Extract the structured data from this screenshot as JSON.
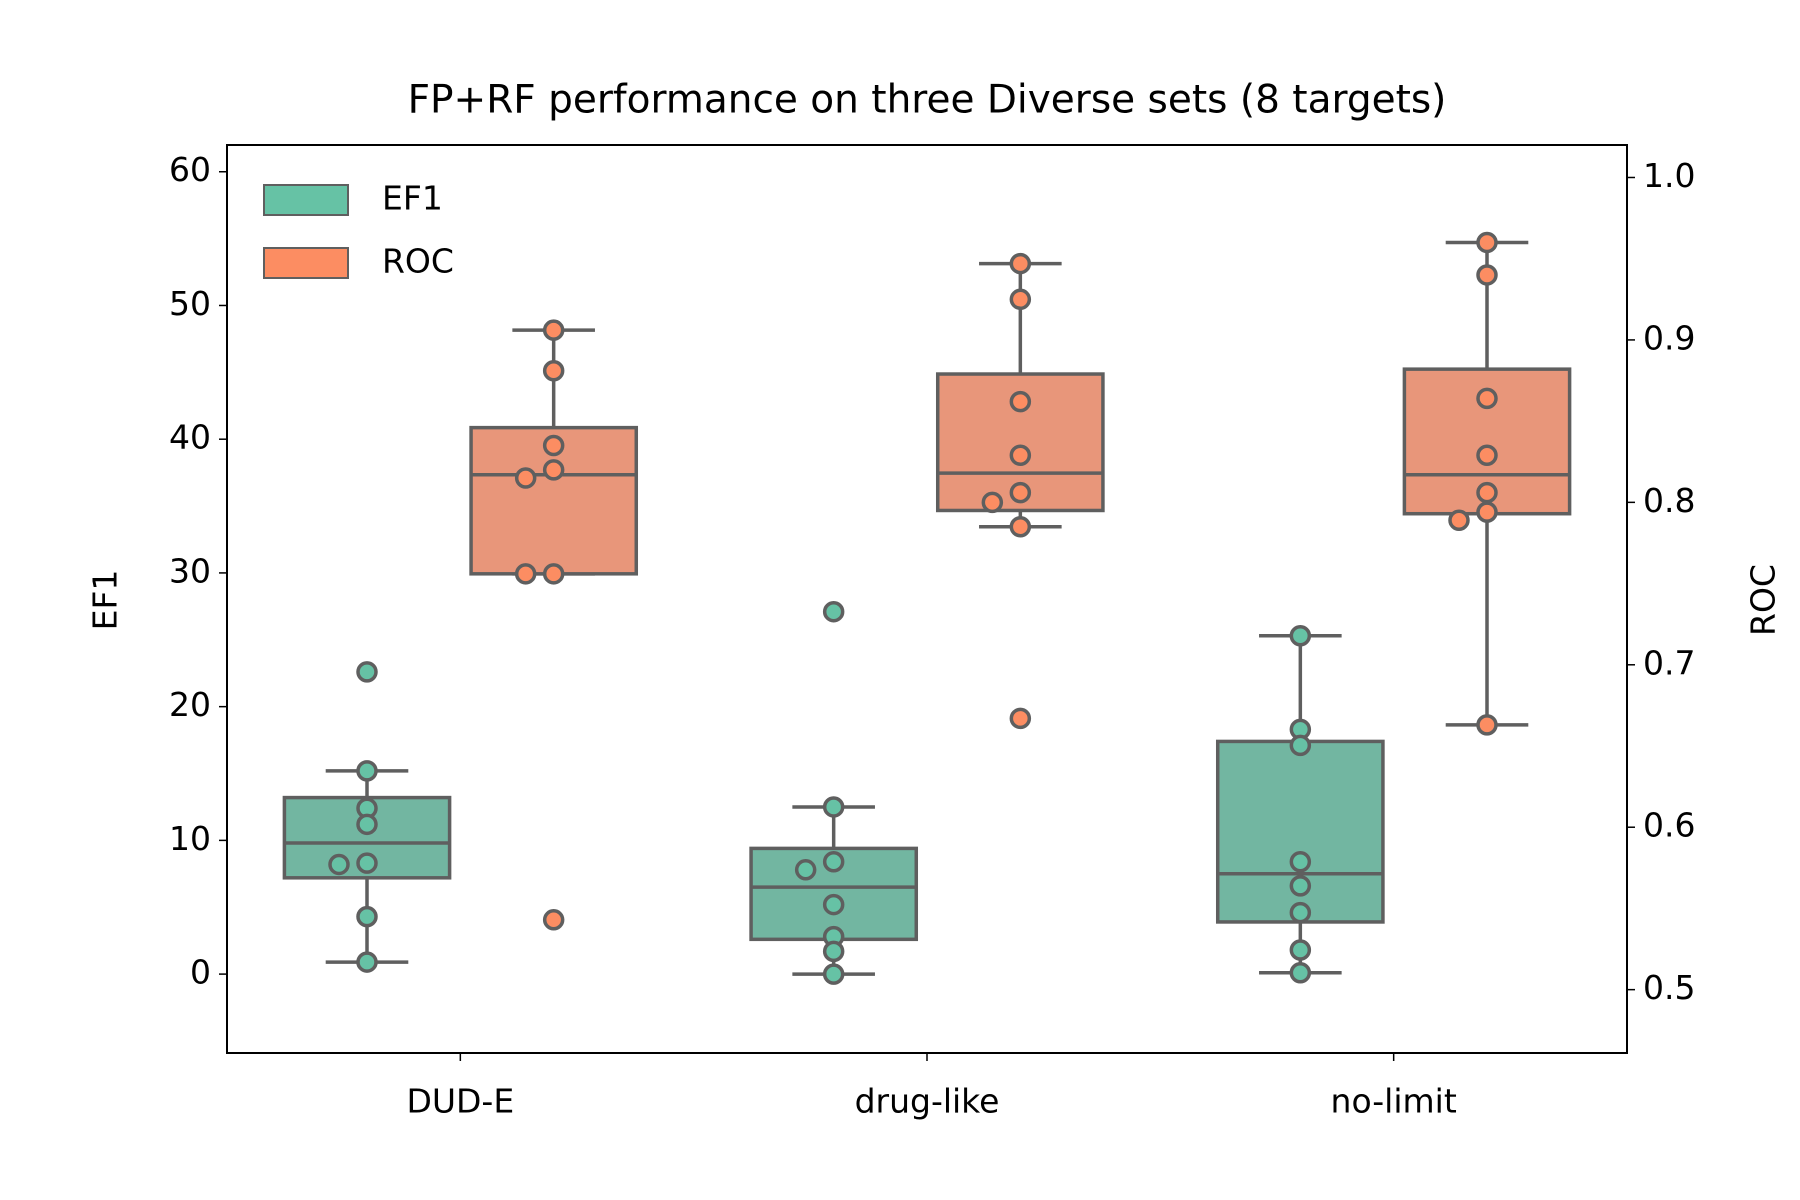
{
  "chart_data": {
    "type": "box",
    "title": "FP+RF performance on three Diverse sets (8 targets)",
    "ylabel": "EF1",
    "y2label": "ROC",
    "categories": [
      "DUD-E",
      "drug-like",
      "no-limit"
    ],
    "ylim": [
      -5.9,
      62
    ],
    "yticks": [
      0,
      10,
      20,
      30,
      40,
      50,
      60
    ],
    "y2lim": [
      0.461,
      1.02
    ],
    "y2ticks": [
      0.5,
      0.6,
      0.7,
      0.8,
      0.9,
      {
        "value": 1,
        "label": "1.0"
      }
    ],
    "legend": "upper left",
    "grid": false,
    "series": [
      {
        "name": "EF1",
        "color": "#66c2a5",
        "box_color": "#72b6a1",
        "boxes": [
          {
            "min": 0.9,
            "q1": 7.2,
            "median": 9.8,
            "q3": 13.2,
            "max": 15.2,
            "points": [
              22.6,
              15.2,
              12.4,
              11.2,
              8.3,
              8.2,
              4.3,
              0.9
            ]
          },
          {
            "min": 0,
            "q1": 2.6,
            "median": 6.5,
            "q3": 9.4,
            "max": 12.5,
            "points": [
              27.1,
              12.5,
              8.4,
              7.8,
              5.2,
              2.8,
              1.7,
              0
            ]
          },
          {
            "min": 0.1,
            "q1": 3.9,
            "median": 7.5,
            "q3": 17.4,
            "max": 25.3,
            "points": [
              25.3,
              18.3,
              17.1,
              8.4,
              6.6,
              4.6,
              1.8,
              0.1
            ]
          }
        ]
      },
      {
        "name": "ROC",
        "color": "#fc8d62",
        "box_color": "#e8967a",
        "axis": "y2",
        "boxes": [
          {
            "min": 0.756,
            "q1": 0.756,
            "median": 0.817,
            "q3": 0.846,
            "max": 0.906,
            "points": [
              0.906,
              0.881,
              0.835,
              0.82,
              0.815,
              0.756,
              0.756,
              0.543
            ]
          },
          {
            "min": 0.785,
            "q1": 0.795,
            "median": 0.818,
            "q3": 0.879,
            "max": 0.947,
            "points": [
              0.947,
              0.925,
              0.862,
              0.829,
              0.806,
              0.8,
              0.785,
              0.667
            ]
          },
          {
            "min": 0.663,
            "q1": 0.793,
            "median": 0.817,
            "q3": 0.882,
            "max": 0.96,
            "points": [
              0.96,
              0.94,
              0.864,
              0.829,
              0.806,
              0.794,
              0.789,
              0.663
            ]
          }
        ]
      }
    ]
  }
}
